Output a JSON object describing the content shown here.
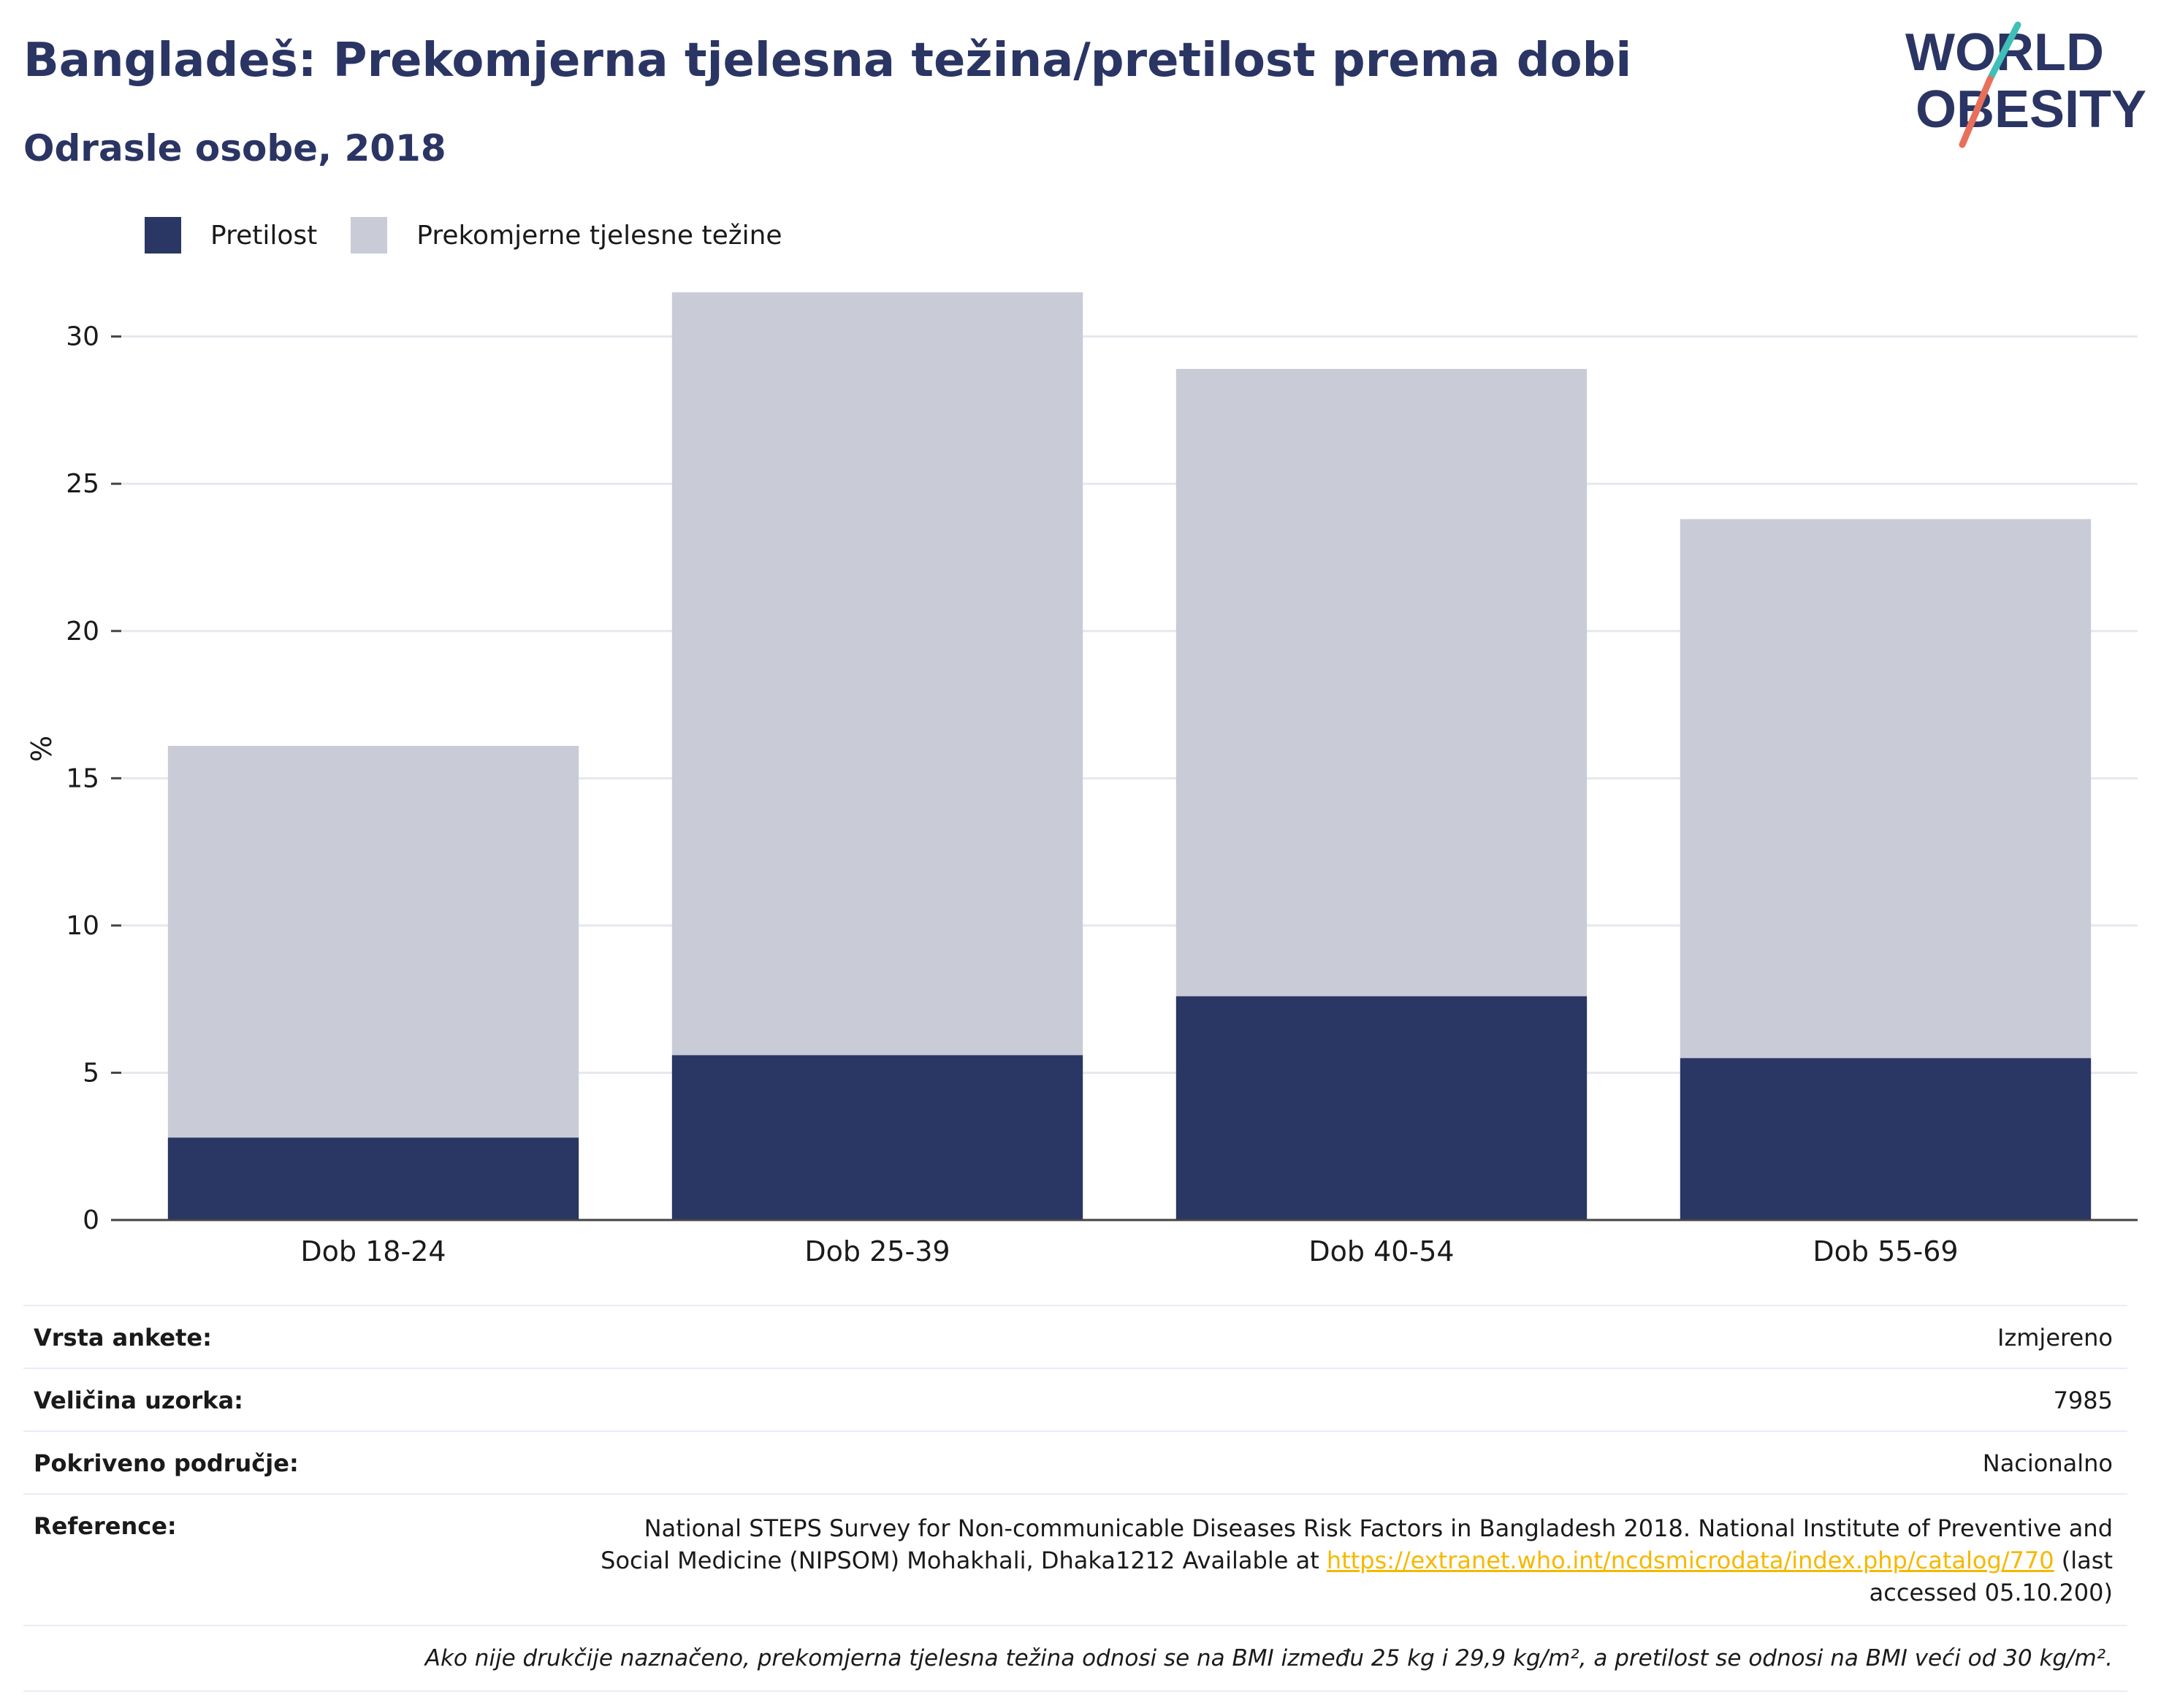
{
  "header": {
    "title": "Bangladeš: Prekomjerna tjelesna težina/pretilost prema dobi",
    "subtitle": "Odrasle osobe, 2018"
  },
  "logo": {
    "line1": "WORLD",
    "line2": "OBESITY",
    "name": "world-obesity-logo"
  },
  "colors": {
    "obesity": "#2a3664",
    "overweight": "#c9ccd7",
    "accent_teal": "#3fbfb8",
    "accent_coral": "#e86f5a",
    "link": "#f5b800",
    "text_dark": "#2a3564"
  },
  "legend": {
    "obesity": "Pretilost",
    "overweight": "Prekomjerne tjelesne težine"
  },
  "chart_data": {
    "type": "bar",
    "stacked": true,
    "categories": [
      "Dob 18-24",
      "Dob 25-39",
      "Dob 40-54",
      "Dob 55-69"
    ],
    "series": [
      {
        "name": "Pretilost",
        "values": [
          2.8,
          5.6,
          7.6,
          5.5
        ]
      },
      {
        "name": "Prekomjerne tjelesne težine",
        "values": [
          13.3,
          25.9,
          21.3,
          18.3
        ]
      }
    ],
    "ylabel": "%",
    "xlabel": "",
    "ylim": [
      0,
      32
    ],
    "yticks": [
      0,
      5,
      10,
      15,
      20,
      25,
      30
    ],
    "grid": true,
    "legend_position": "top-left"
  },
  "info": {
    "survey_type_label": "Vrsta ankete:",
    "survey_type_value": "Izmjereno",
    "sample_size_label": "Veličina uzorka:",
    "sample_size_value": "7985",
    "coverage_label": "Pokriveno područje:",
    "coverage_value": "Nacionalno",
    "reference_label": "Reference:",
    "reference_text_before": "National STEPS Survey for Non-communicable Diseases Risk Factors in Bangladesh 2018. National Institute of Preventive and Social Medicine (NIPSOM) Mohakhali, Dhaka1212 Available at ",
    "reference_link": "https://extranet.who.int/ncdsmicrodata/index.php/catalog/770",
    "reference_text_after": " (last accessed 05.10.200)",
    "footnote": "Ako nije drukčije naznačeno, prekomjerna tjelesna težina odnosi se na BMI između 25 kg i 29,9 kg/m², a pretilost se odnosi na BMI veći od 30 kg/m²."
  }
}
